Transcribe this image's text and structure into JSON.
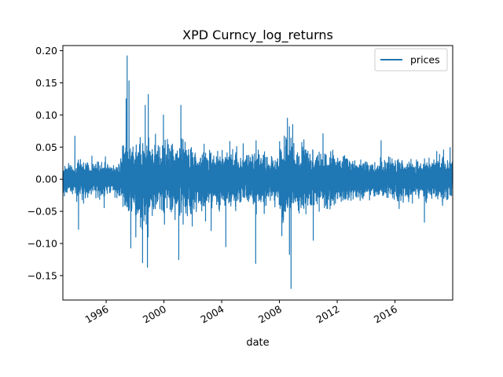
{
  "chart_data": {
    "type": "line",
    "title": "XPD Curncy_log_returns",
    "xlabel": "date",
    "ylabel": "",
    "x_range": [
      "1993-01-01",
      "2019-12-31"
    ],
    "ylim": [
      -0.188,
      0.208
    ],
    "y_ticks": [
      -0.15,
      -0.1,
      -0.05,
      0.0,
      0.05,
      0.1,
      0.15,
      0.2
    ],
    "y_tick_labels": [
      "−0.15",
      "−0.10",
      "−0.05",
      "0.00",
      "0.05",
      "0.10",
      "0.15",
      "0.20"
    ],
    "x_ticks": [
      "1996-01-01",
      "2000-01-01",
      "2004-01-01",
      "2008-01-01",
      "2012-01-01",
      "2016-01-01"
    ],
    "x_tick_labels": [
      "1996",
      "2000",
      "2004",
      "2008",
      "2012",
      "2016"
    ],
    "grid": false,
    "legend": {
      "placement": "top-right",
      "entries": [
        "prices"
      ]
    },
    "colors": {
      "prices": "#1f77b4"
    },
    "series": [
      {
        "name": "prices",
        "amplitude_by_year": [
          [
            "1993",
            0.018
          ],
          [
            "1994",
            0.02
          ],
          [
            "1995",
            0.02
          ],
          [
            "1996",
            0.018
          ],
          [
            "1997",
            0.04
          ],
          [
            "1998",
            0.045
          ],
          [
            "1999",
            0.035
          ],
          [
            "2000",
            0.038
          ],
          [
            "2001",
            0.04
          ],
          [
            "2002",
            0.035
          ],
          [
            "2003",
            0.03
          ],
          [
            "2004",
            0.03
          ],
          [
            "2005",
            0.028
          ],
          [
            "2006",
            0.032
          ],
          [
            "2007",
            0.025
          ],
          [
            "2008",
            0.045
          ],
          [
            "2009",
            0.035
          ],
          [
            "2010",
            0.03
          ],
          [
            "2011",
            0.03
          ],
          [
            "2012",
            0.026
          ],
          [
            "2013",
            0.022
          ],
          [
            "2014",
            0.02
          ],
          [
            "2015",
            0.022
          ],
          [
            "2016",
            0.025
          ],
          [
            "2017",
            0.02
          ],
          [
            "2018",
            0.022
          ],
          [
            "2019",
            0.025
          ]
        ],
        "spikes": [
          [
            "1993-11-01",
            0.067
          ],
          [
            "1994-02-01",
            -0.078
          ],
          [
            "1997-05-20",
            0.125
          ],
          [
            "1997-06-15",
            0.192
          ],
          [
            "1997-08-01",
            0.153
          ],
          [
            "1997-09-15",
            -0.107
          ],
          [
            "1998-01-20",
            -0.09
          ],
          [
            "1998-07-10",
            -0.13
          ],
          [
            "1998-09-15",
            0.115
          ],
          [
            "1998-11-10",
            -0.137
          ],
          [
            "1998-12-01",
            0.132
          ],
          [
            "1999-06-01",
            0.07
          ],
          [
            "1999-12-20",
            0.1
          ],
          [
            "2000-01-15",
            -0.07
          ],
          [
            "2001-01-10",
            -0.125
          ],
          [
            "2001-03-05",
            0.115
          ],
          [
            "2001-05-01",
            -0.07
          ],
          [
            "2003-04-10",
            -0.08
          ],
          [
            "2004-04-15",
            -0.105
          ],
          [
            "2006-05-10",
            -0.131
          ],
          [
            "2006-05-20",
            0.06
          ],
          [
            "2008-03-01",
            -0.088
          ],
          [
            "2008-07-20",
            0.095
          ],
          [
            "2008-09-10",
            -0.117
          ],
          [
            "2008-10-20",
            -0.17
          ],
          [
            "2008-12-01",
            0.085
          ],
          [
            "2010-05-05",
            -0.095
          ],
          [
            "2015-01-15",
            0.06
          ],
          [
            "2018-01-15",
            -0.067
          ]
        ]
      }
    ]
  }
}
